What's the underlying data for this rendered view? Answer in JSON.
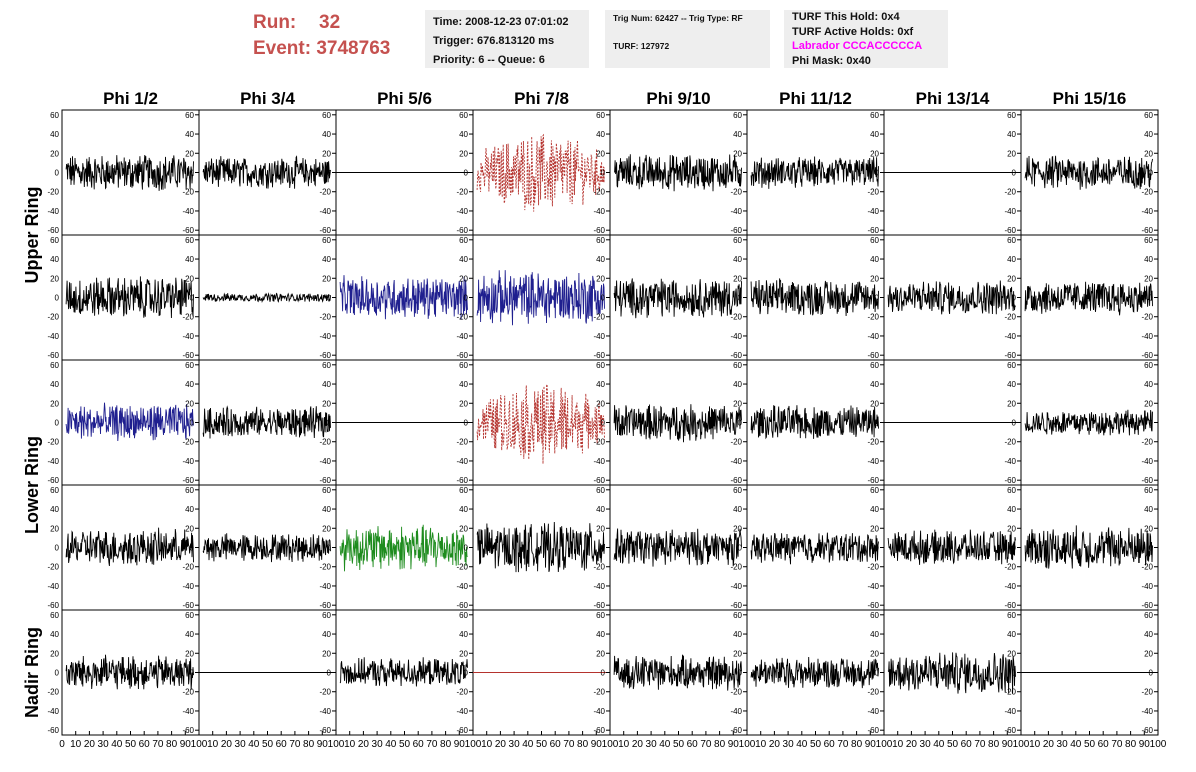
{
  "header": {
    "run_label": "Run:",
    "run_value": "32",
    "event_label": "Event:",
    "event_value": "3748763",
    "time": "Time: 2008-12-23 07:01:02",
    "trigger": "Trigger: 676.813120 ms",
    "priority": "Priority: 6 -- Queue: 6",
    "trig_num": "Trig Num: 62427 -- Trig Type: RF",
    "turf": "TURF: 127972",
    "turf_this_hold": "TURF This Hold: 0x4",
    "turf_active_holds": "TURF Active Holds: 0xf",
    "labrador": "Labrador CCCACCCCCA",
    "phi_mask": "Phi Mask: 0x40"
  },
  "colors": {
    "header_red": "#c5514f",
    "labrador": "#ff00ff",
    "blue": "#1f1f8f",
    "red": "#b5332e",
    "green": "#1e8c1e",
    "black": "#000000"
  },
  "chart_data": {
    "type": "line",
    "columns": [
      "Phi 1/2",
      "Phi 3/4",
      "Phi 5/6",
      "Phi 7/8",
      "Phi 9/10",
      "Phi 11/12",
      "Phi 13/14",
      "Phi 15/16"
    ],
    "rows": [
      "Upper Ring",
      "Lower Ring",
      "Nadir Ring"
    ],
    "ylim": [
      -65,
      65
    ],
    "yticks": [
      "60",
      "40",
      "20",
      "0",
      "-20",
      "-40",
      "-60"
    ],
    "xlim": [
      0,
      100
    ],
    "xtick_labels": [
      "0",
      "10",
      "20",
      "30",
      "40",
      "50",
      "60",
      "70",
      "80",
      "90",
      "100"
    ],
    "panels": [
      [
        {
          "color": "black",
          "amp": 13
        },
        {
          "color": "black",
          "amp": 11
        },
        {
          "color": "flat"
        },
        {
          "color": "red",
          "amp": 22,
          "dashed": true
        },
        {
          "color": "black",
          "amp": 13
        },
        {
          "color": "black",
          "amp": 11
        },
        {
          "color": "flat"
        },
        {
          "color": "black",
          "amp": 12
        }
      ],
      [
        {
          "color": "black",
          "amp": 15
        },
        {
          "color": "black",
          "amp": 3
        },
        {
          "color": "blue",
          "amp": 15
        },
        {
          "color": "blue",
          "amp": 19
        },
        {
          "color": "black",
          "amp": 14
        },
        {
          "color": "black",
          "amp": 13
        },
        {
          "color": "black",
          "amp": 12
        },
        {
          "color": "black",
          "amp": 12
        }
      ],
      [
        {
          "color": "blue",
          "amp": 13
        },
        {
          "color": "black",
          "amp": 11
        },
        {
          "color": "flat"
        },
        {
          "color": "red",
          "amp": 22,
          "dashed": true
        },
        {
          "color": "black",
          "amp": 13
        },
        {
          "color": "black",
          "amp": 12
        },
        {
          "color": "flat"
        },
        {
          "color": "black",
          "amp": 9
        }
      ],
      [
        {
          "color": "black",
          "amp": 13
        },
        {
          "color": "black",
          "amp": 10
        },
        {
          "color": "green",
          "amp": 16
        },
        {
          "color": "black",
          "amp": 17
        },
        {
          "color": "black",
          "amp": 13
        },
        {
          "color": "black",
          "amp": 11
        },
        {
          "color": "black",
          "amp": 12
        },
        {
          "color": "black",
          "amp": 15
        }
      ],
      [
        {
          "color": "black",
          "amp": 12
        },
        {
          "color": "flat"
        },
        {
          "color": "black",
          "amp": 10
        },
        {
          "color": "redflat"
        },
        {
          "color": "black",
          "amp": 12
        },
        {
          "color": "black",
          "amp": 11
        },
        {
          "color": "black",
          "amp": 15
        },
        {
          "color": "flat"
        }
      ]
    ]
  }
}
